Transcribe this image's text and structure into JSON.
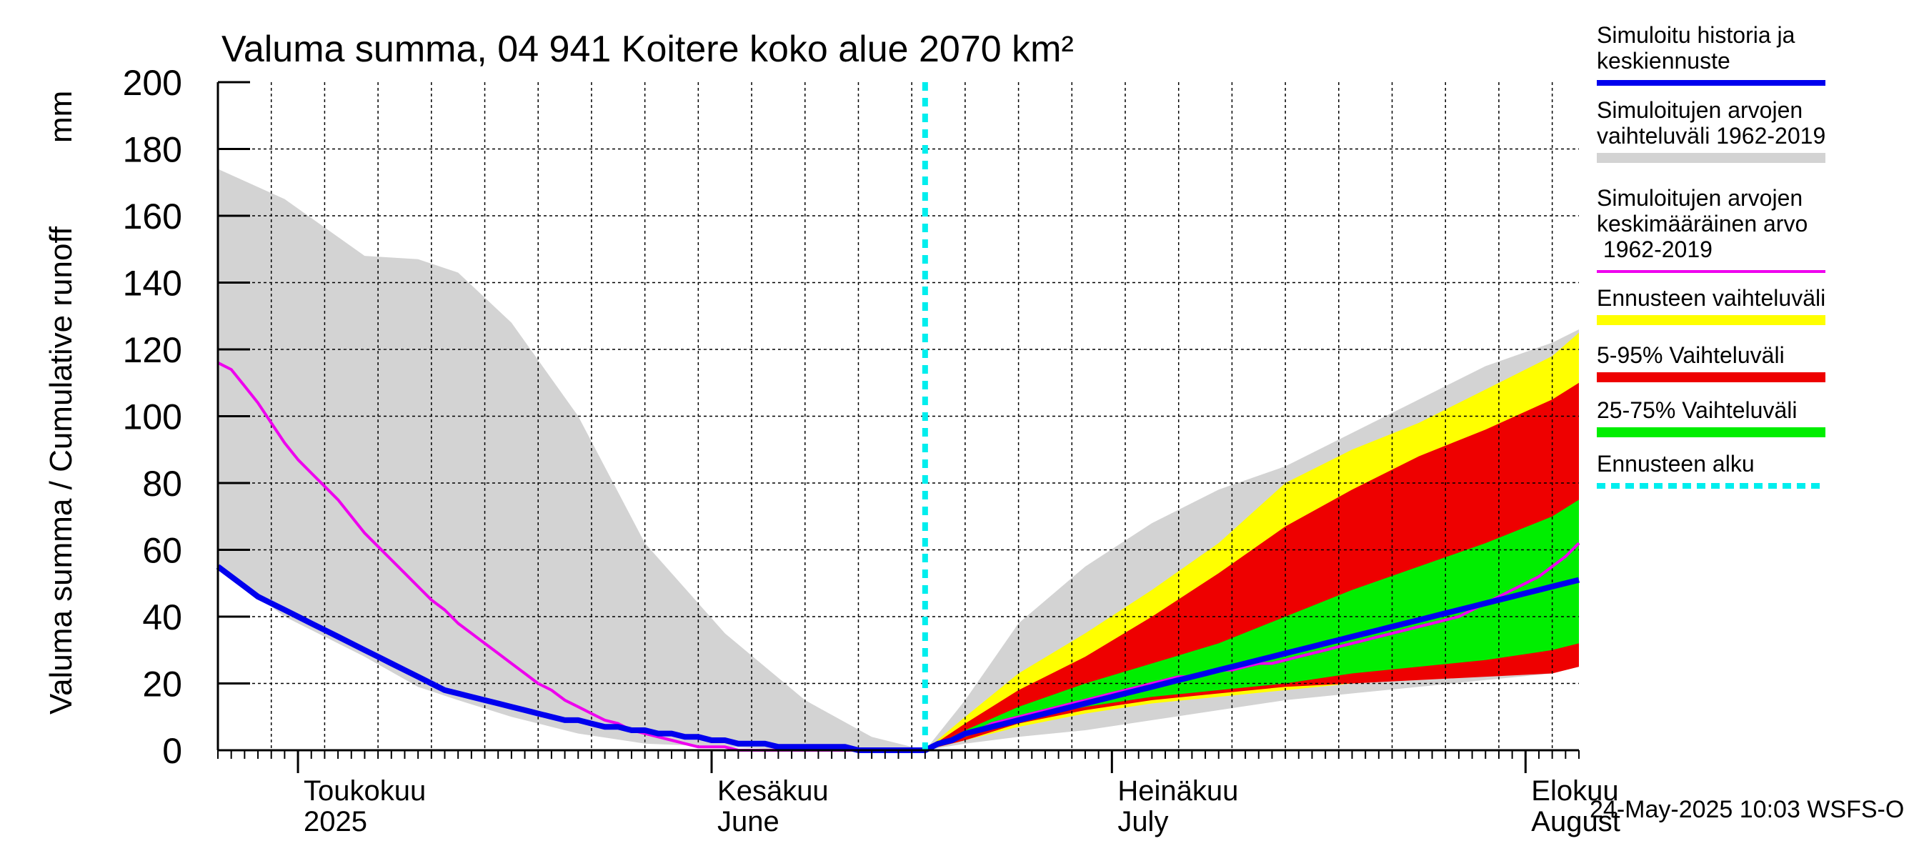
{
  "chart_data": {
    "type": "area",
    "title": "Valuma summa, 04 941 Koitere koko alue 2070 km²",
    "ylabel_fi": "Valuma summa / Cumulative runoff",
    "ylabel_unit": "mm",
    "ylim": [
      0,
      200
    ],
    "yticks": [
      "0",
      "20",
      "40",
      "60",
      "80",
      "100",
      "120",
      "140",
      "160",
      "180",
      "200"
    ],
    "grid": true,
    "xlim": [
      0,
      102
    ],
    "forecast_start_day": 53,
    "xticks": [
      {
        "day": 6,
        "line1": "Toukokuu",
        "line2": "2025"
      },
      {
        "day": 37,
        "line1": "Kesäkuu",
        "line2": "June"
      },
      {
        "day": 67,
        "line1": "Heinäkuu",
        "line2": "July"
      },
      {
        "day": 98,
        "line1": "Elokuu",
        "line2": "August"
      }
    ],
    "footer": "24-May-2025 10:03 WSFS-O",
    "legend_position": "right",
    "legend": [
      {
        "label": "Simuloitu historia ja keskiennuste",
        "color": "#0000ee",
        "style": "line"
      },
      {
        "label": "Simuloitujen arvojen vaihteluväli 1962-2019",
        "color": "#d3d3d3",
        "style": "band"
      },
      {
        "label": "Simuloitujen arvojen keskimääräinen arvo 1962-2019",
        "color": "#ee00ee",
        "style": "thin"
      },
      {
        "label": "Ennusteen vaihteluväli",
        "color": "#ffff00",
        "style": "band"
      },
      {
        "label": "5-95% Vaihteluväli",
        "color": "#ee0000",
        "style": "band"
      },
      {
        "label": "25-75% Vaihteluväli",
        "color": "#00ee00",
        "style": "band"
      },
      {
        "label": "Ennusteen alku",
        "color": "#00eeee",
        "style": "dotted"
      }
    ],
    "series": {
      "hist_range": {
        "x": [
          0,
          5,
          11,
          15,
          18,
          22,
          27,
          32,
          38,
          44,
          49,
          53,
          56,
          60,
          65,
          70,
          75,
          80,
          85,
          90,
          95,
          100,
          102
        ],
        "upper": [
          174,
          165,
          148,
          147,
          143,
          128,
          100,
          62,
          35,
          15,
          4,
          0,
          15,
          38,
          55,
          68,
          78,
          85,
          95,
          105,
          115,
          122,
          126
        ],
        "lower": [
          55,
          40,
          28,
          19,
          15,
          10,
          5,
          2,
          1,
          0,
          0,
          0,
          2,
          4,
          6,
          9,
          12,
          15,
          17,
          19,
          21,
          23,
          25
        ]
      },
      "forecast_range": {
        "x": [
          53,
          56,
          60,
          65,
          70,
          75,
          80,
          85,
          90,
          95,
          100,
          102
        ],
        "upper": [
          0,
          10,
          23,
          35,
          48,
          62,
          80,
          90,
          98,
          108,
          118,
          125
        ],
        "lower": [
          0,
          3,
          7,
          11,
          14,
          16,
          18,
          20,
          23,
          25,
          28,
          30
        ]
      },
      "p5_95": {
        "x": [
          53,
          56,
          60,
          65,
          70,
          75,
          80,
          85,
          90,
          95,
          100,
          102
        ],
        "upper": [
          0,
          8,
          18,
          28,
          40,
          53,
          67,
          78,
          88,
          96,
          105,
          110
        ],
        "lower": [
          0,
          3,
          8,
          12,
          15,
          17,
          19,
          20,
          21,
          22,
          23,
          25
        ]
      },
      "p25_75": {
        "x": [
          53,
          56,
          60,
          65,
          70,
          75,
          80,
          85,
          90,
          95,
          100,
          102
        ],
        "upper": [
          0,
          6,
          13,
          20,
          26,
          32,
          40,
          48,
          55,
          62,
          70,
          75
        ],
        "lower": [
          0,
          4,
          9,
          13,
          16,
          18,
          20,
          23,
          25,
          27,
          30,
          32
        ]
      },
      "mean_hist": {
        "x": [
          0,
          1,
          2,
          3,
          4,
          5,
          6,
          7,
          8,
          9,
          10,
          11,
          12,
          13,
          14,
          15,
          16,
          17,
          18,
          19,
          20,
          21,
          22,
          23,
          24,
          25,
          26,
          27,
          28,
          29,
          30,
          31,
          32,
          33,
          34,
          35,
          36,
          37,
          38,
          39,
          40,
          41,
          42,
          43,
          44,
          45,
          46,
          47,
          48,
          49,
          50,
          51,
          52,
          53,
          54,
          55,
          56,
          57,
          58,
          59,
          60,
          61,
          62,
          63,
          64,
          65,
          66,
          67,
          68,
          69,
          70,
          71,
          72,
          73,
          74,
          75,
          76,
          77,
          78,
          79,
          80,
          81,
          82,
          83,
          84,
          85,
          86,
          87,
          88,
          89,
          90,
          91,
          92,
          93,
          94,
          95,
          96,
          97,
          98,
          99,
          100,
          101,
          102
        ],
        "y": [
          116,
          114,
          109,
          104,
          98,
          92,
          87,
          83,
          79,
          75,
          70,
          65,
          61,
          57,
          53,
          49,
          45,
          42,
          38,
          35,
          32,
          29,
          26,
          23,
          20,
          18,
          15,
          13,
          11,
          9,
          8,
          6,
          5,
          4,
          3,
          2,
          1,
          1,
          1,
          0,
          0,
          0,
          0,
          0,
          0,
          0,
          0,
          0,
          0,
          0,
          0,
          0,
          0,
          0,
          2,
          3,
          5,
          6,
          8,
          9,
          10,
          11,
          12,
          13,
          14,
          15,
          16,
          17,
          18,
          19,
          20,
          21,
          22,
          22,
          23,
          24,
          24,
          25,
          26,
          26,
          27,
          28,
          29,
          30,
          31,
          32,
          33,
          34,
          35,
          36,
          37,
          38,
          39,
          40,
          42,
          44,
          46,
          48,
          50,
          52,
          55,
          58,
          62
        ]
      },
      "median": {
        "x": [
          0,
          1,
          2,
          3,
          4,
          5,
          6,
          7,
          8,
          9,
          10,
          11,
          12,
          13,
          14,
          15,
          16,
          17,
          18,
          19,
          20,
          21,
          22,
          23,
          24,
          25,
          26,
          27,
          28,
          29,
          30,
          31,
          32,
          33,
          34,
          35,
          36,
          37,
          38,
          39,
          40,
          41,
          42,
          43,
          44,
          45,
          46,
          47,
          48,
          49,
          50,
          51,
          52,
          53,
          54,
          55,
          56,
          57,
          58,
          59,
          60,
          61,
          62,
          63,
          64,
          65,
          66,
          67,
          68,
          69,
          70,
          71,
          72,
          73,
          74,
          75,
          76,
          77,
          78,
          79,
          80,
          81,
          82,
          83,
          84,
          85,
          86,
          87,
          88,
          89,
          90,
          91,
          92,
          93,
          94,
          95,
          96,
          97,
          98,
          99,
          100,
          101,
          102
        ],
        "y": [
          55,
          52,
          49,
          46,
          44,
          42,
          40,
          38,
          36,
          34,
          32,
          30,
          28,
          26,
          24,
          22,
          20,
          18,
          17,
          16,
          15,
          14,
          13,
          12,
          11,
          10,
          9,
          9,
          8,
          7,
          7,
          6,
          6,
          5,
          5,
          4,
          4,
          3,
          3,
          2,
          2,
          2,
          1,
          1,
          1,
          1,
          1,
          1,
          0,
          0,
          0,
          0,
          0,
          0,
          2,
          3,
          5,
          6,
          7,
          8,
          9,
          10,
          11,
          12,
          13,
          14,
          15,
          16,
          17,
          18,
          19,
          20,
          21,
          22,
          23,
          24,
          25,
          26,
          27,
          28,
          29,
          30,
          31,
          32,
          33,
          34,
          35,
          36,
          37,
          38,
          39,
          40,
          41,
          42,
          43,
          44,
          45,
          46,
          47,
          48,
          49,
          50,
          51
        ]
      }
    }
  }
}
